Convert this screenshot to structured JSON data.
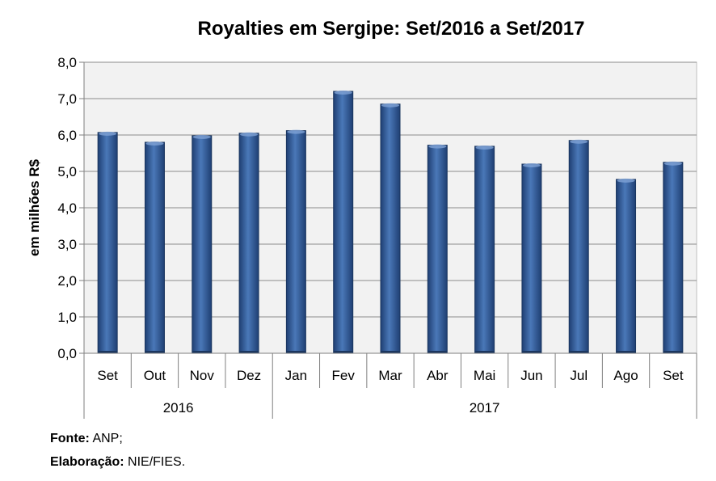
{
  "chart_data": {
    "type": "bar",
    "title": "Royalties em Sergipe: Set/2016 a Set/2017",
    "ylabel": "em milhões R$",
    "xlabel": "",
    "ylim": [
      0,
      8
    ],
    "yticks": [
      "0,0",
      "1,0",
      "2,0",
      "3,0",
      "4,0",
      "5,0",
      "6,0",
      "7,0",
      "8,0"
    ],
    "categories": [
      "Set",
      "Out",
      "Nov",
      "Dez",
      "Jan",
      "Fev",
      "Mar",
      "Abr",
      "Mai",
      "Jun",
      "Jul",
      "Ago",
      "Set"
    ],
    "values": [
      6.07,
      5.8,
      5.98,
      6.05,
      6.12,
      7.2,
      6.85,
      5.72,
      5.69,
      5.2,
      5.85,
      4.78,
      5.25
    ],
    "groups": [
      {
        "label": "2016",
        "count": 4
      },
      {
        "label": "2017",
        "count": 9
      }
    ],
    "grid": true,
    "bar_color": "#2F5597"
  },
  "footer": {
    "source_label": "Fonte:",
    "source_value": " ANP;",
    "credit_label": "Elaboração:",
    "credit_value": " NIE/FIES."
  }
}
